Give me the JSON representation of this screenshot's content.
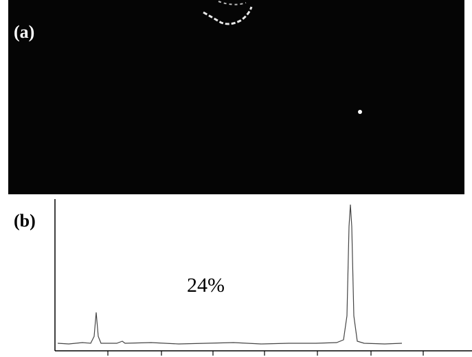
{
  "panel_a": {
    "label": "(a)"
  },
  "panel_b": {
    "label": "(b)",
    "annotation": "24%"
  }
}
